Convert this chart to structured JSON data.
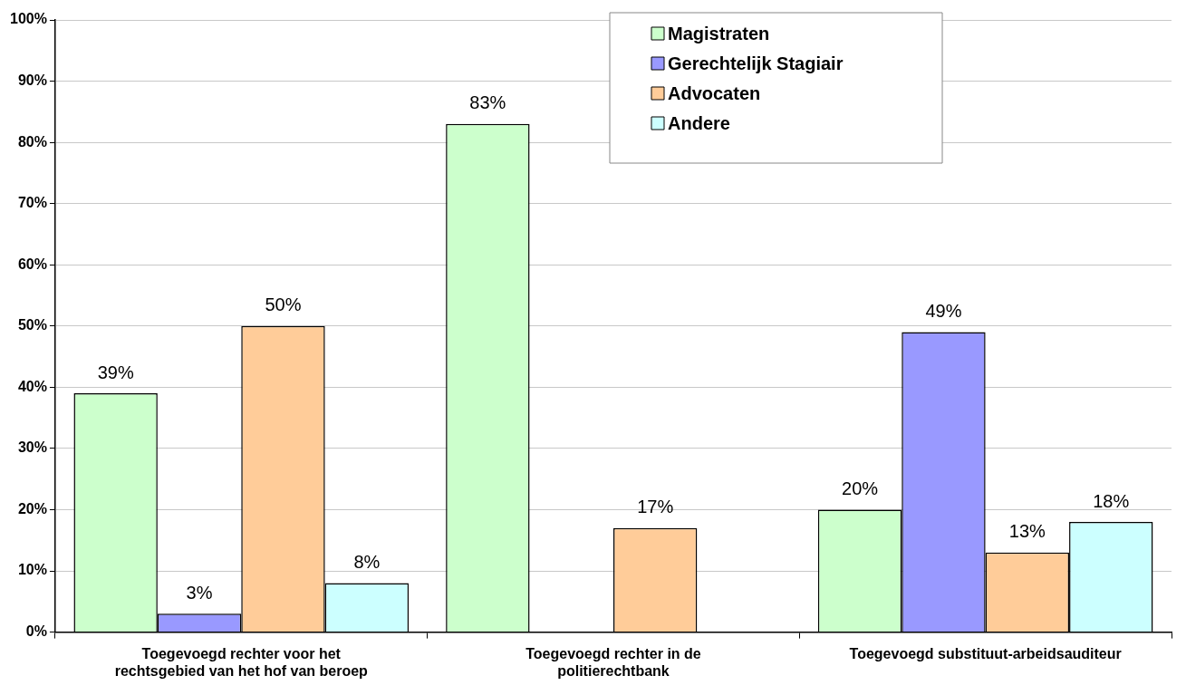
{
  "chart_data": {
    "type": "bar",
    "categories": [
      "Toegevoegd rechter voor het rechtsgebied van het hof van beroep",
      "Toegevoegd rechter in de politierechtbank",
      "Toegevoegd substituut-arbeidsauditeur"
    ],
    "series": [
      {
        "name": "Magistraten",
        "color": "#ccffcc",
        "values": [
          39,
          83,
          20
        ],
        "value_labels": [
          "39%",
          "83%",
          "20%"
        ]
      },
      {
        "name": "Gerechtelijk Stagiair",
        "color": "#9999ff",
        "values": [
          3,
          null,
          49
        ],
        "value_labels": [
          "3%",
          null,
          "49%"
        ]
      },
      {
        "name": "Advocaten",
        "color": "#ffcc99",
        "values": [
          50,
          17,
          13
        ],
        "value_labels": [
          "50%",
          "17%",
          "13%"
        ]
      },
      {
        "name": "Andere",
        "color": "#ccffff",
        "values": [
          8,
          null,
          18
        ],
        "value_labels": [
          "8%",
          null,
          "18%"
        ]
      }
    ],
    "ylim": [
      0,
      100
    ],
    "yticks": [
      {
        "value": 0,
        "label": "0%"
      },
      {
        "value": 10,
        "label": "10%"
      },
      {
        "value": 20,
        "label": "20%"
      },
      {
        "value": 30,
        "label": "30%"
      },
      {
        "value": 40,
        "label": "40%"
      },
      {
        "value": 50,
        "label": "50%"
      },
      {
        "value": 60,
        "label": "60%"
      },
      {
        "value": 70,
        "label": "70%"
      },
      {
        "value": 80,
        "label": "80%"
      },
      {
        "value": 90,
        "label": "90%"
      },
      {
        "value": 100,
        "label": "100%"
      }
    ],
    "grid": "y",
    "legend": "top right"
  }
}
